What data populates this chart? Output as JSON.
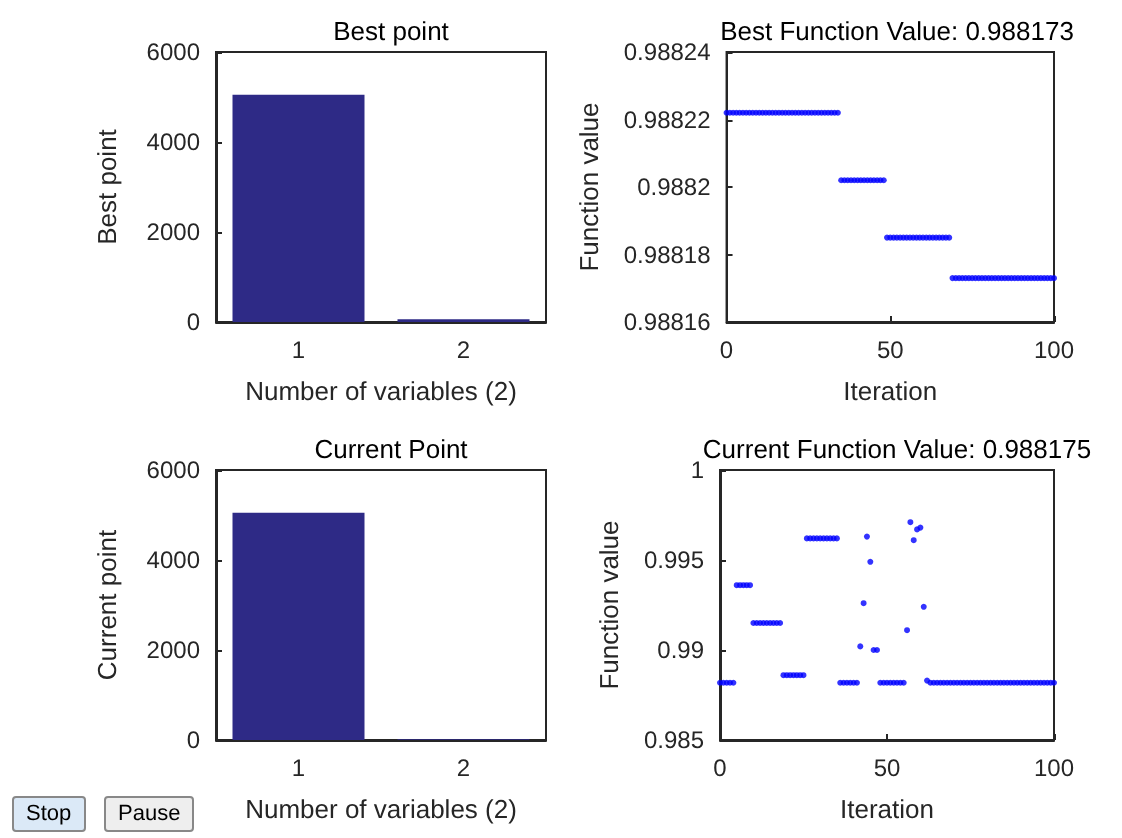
{
  "chart_data": [
    {
      "type": "bar",
      "title": "Best point",
      "xlabel": "Number of variables (2)",
      "ylabel": "Best point",
      "categories": [
        "1",
        "2"
      ],
      "values": [
        5050,
        60
      ],
      "color": "#2e2a86",
      "ylim": [
        0,
        6000
      ],
      "yticks": [
        0,
        2000,
        4000,
        6000
      ],
      "grid": false
    },
    {
      "type": "scatter",
      "title": "Best Function Value: 0.988173",
      "xlabel": "Iteration",
      "ylabel": "Function value",
      "marker": "circle",
      "color": "#0000ff",
      "xlim": [
        0,
        100
      ],
      "xticks": [
        0,
        50,
        100
      ],
      "ylim": [
        0.98816,
        0.98824
      ],
      "yticks": [
        0.98816,
        0.98818,
        0.9882,
        0.98822,
        0.98824
      ],
      "grid": false,
      "x": [
        0,
        1,
        2,
        3,
        4,
        5,
        6,
        7,
        8,
        9,
        10,
        11,
        12,
        13,
        14,
        15,
        16,
        17,
        18,
        19,
        20,
        21,
        22,
        23,
        24,
        25,
        26,
        27,
        28,
        29,
        30,
        31,
        32,
        33,
        34,
        35,
        36,
        37,
        38,
        39,
        40,
        41,
        42,
        43,
        44,
        45,
        46,
        47,
        48,
        49,
        50,
        51,
        52,
        53,
        54,
        55,
        56,
        57,
        58,
        59,
        60,
        61,
        62,
        63,
        64,
        65,
        66,
        67,
        68,
        69,
        70,
        71,
        72,
        73,
        74,
        75,
        76,
        77,
        78,
        79,
        80,
        81,
        82,
        83,
        84,
        85,
        86,
        87,
        88,
        89,
        90,
        91,
        92,
        93,
        94,
        95,
        96,
        97,
        98,
        99,
        100
      ],
      "values": [
        0.988222,
        0.988222,
        0.988222,
        0.988222,
        0.988222,
        0.988222,
        0.988222,
        0.988222,
        0.988222,
        0.988222,
        0.988222,
        0.988222,
        0.988222,
        0.988222,
        0.988222,
        0.988222,
        0.988222,
        0.988222,
        0.988222,
        0.988222,
        0.988222,
        0.988222,
        0.988222,
        0.988222,
        0.988222,
        0.988222,
        0.988222,
        0.988222,
        0.988222,
        0.988222,
        0.988222,
        0.988222,
        0.988222,
        0.988222,
        0.988222,
        0.988202,
        0.988202,
        0.988202,
        0.988202,
        0.988202,
        0.988202,
        0.988202,
        0.988202,
        0.988202,
        0.988202,
        0.988202,
        0.988202,
        0.988202,
        0.988202,
        0.988185,
        0.988185,
        0.988185,
        0.988185,
        0.988185,
        0.988185,
        0.988185,
        0.988185,
        0.988185,
        0.988185,
        0.988185,
        0.988185,
        0.988185,
        0.988185,
        0.988185,
        0.988185,
        0.988185,
        0.988185,
        0.988185,
        0.988185,
        0.988173,
        0.988173,
        0.988173,
        0.988173,
        0.988173,
        0.988173,
        0.988173,
        0.988173,
        0.988173,
        0.988173,
        0.988173,
        0.988173,
        0.988173,
        0.988173,
        0.988173,
        0.988173,
        0.988173,
        0.988173,
        0.988173,
        0.988173,
        0.988173,
        0.988173,
        0.988173,
        0.988173,
        0.988173,
        0.988173,
        0.988173,
        0.988173,
        0.988173,
        0.988173,
        0.988173,
        0.988173
      ]
    },
    {
      "type": "bar",
      "title": "Current Point",
      "xlabel": "Number of variables (2)",
      "ylabel": "Current point",
      "categories": [
        "1",
        "2"
      ],
      "values": [
        5050,
        15
      ],
      "color": "#2e2a86",
      "ylim": [
        0,
        6000
      ],
      "yticks": [
        0,
        2000,
        4000,
        6000
      ],
      "grid": false,
      "annotations": [
        "Stop",
        "Pause"
      ]
    },
    {
      "type": "scatter",
      "title": "Current Function Value: 0.988175",
      "xlabel": "Iteration",
      "ylabel": "Function value",
      "marker": "circle",
      "color": "#0000ff",
      "xlim": [
        0,
        100
      ],
      "xticks": [
        0,
        50,
        100
      ],
      "ylim": [
        0.985,
        1
      ],
      "yticks": [
        0.985,
        0.99,
        0.995,
        1
      ],
      "grid": false,
      "x": [
        0,
        1,
        2,
        3,
        4,
        5,
        6,
        7,
        8,
        9,
        10,
        11,
        12,
        13,
        14,
        15,
        16,
        17,
        18,
        19,
        20,
        21,
        22,
        23,
        24,
        25,
        26,
        27,
        28,
        29,
        30,
        31,
        32,
        33,
        34,
        35,
        36,
        37,
        38,
        39,
        40,
        41,
        42,
        43,
        44,
        45,
        46,
        47,
        48,
        49,
        50,
        51,
        52,
        53,
        54,
        55,
        56,
        57,
        58,
        59,
        60,
        61,
        62,
        63,
        64,
        65,
        66,
        67,
        68,
        69,
        70,
        71,
        72,
        73,
        74,
        75,
        76,
        77,
        78,
        79,
        80,
        81,
        82,
        83,
        84,
        85,
        86,
        87,
        88,
        89,
        90,
        91,
        92,
        93,
        94,
        95,
        96,
        97,
        98,
        99,
        100
      ],
      "values": [
        0.98818,
        0.98818,
        0.98818,
        0.98818,
        0.98818,
        0.9936,
        0.9936,
        0.9936,
        0.9936,
        0.9936,
        0.9915,
        0.9915,
        0.9915,
        0.9915,
        0.9915,
        0.9915,
        0.9915,
        0.9915,
        0.9915,
        0.9886,
        0.9886,
        0.9886,
        0.9886,
        0.9886,
        0.9886,
        0.9886,
        0.9962,
        0.9962,
        0.9962,
        0.9962,
        0.9962,
        0.9962,
        0.9962,
        0.9962,
        0.9962,
        0.9962,
        0.98818,
        0.98818,
        0.98818,
        0.98818,
        0.98818,
        0.98818,
        0.9902,
        0.9926,
        0.9963,
        0.9949,
        0.99,
        0.99,
        0.98818,
        0.98818,
        0.98818,
        0.98818,
        0.98818,
        0.98818,
        0.98818,
        0.98818,
        0.9911,
        0.9971,
        0.9961,
        0.9967,
        0.9968,
        0.9924,
        0.9883,
        0.98818,
        0.98818,
        0.98818,
        0.98818,
        0.98818,
        0.98818,
        0.98818,
        0.98818,
        0.98818,
        0.98818,
        0.98818,
        0.98818,
        0.98818,
        0.98818,
        0.98818,
        0.98818,
        0.98818,
        0.98818,
        0.98818,
        0.98818,
        0.98818,
        0.98818,
        0.98818,
        0.98818,
        0.98818,
        0.98818,
        0.98818,
        0.98818,
        0.98818,
        0.98818,
        0.98818,
        0.98818,
        0.98818,
        0.98818,
        0.98818,
        0.98818,
        0.98818,
        0.98818
      ]
    }
  ]
}
